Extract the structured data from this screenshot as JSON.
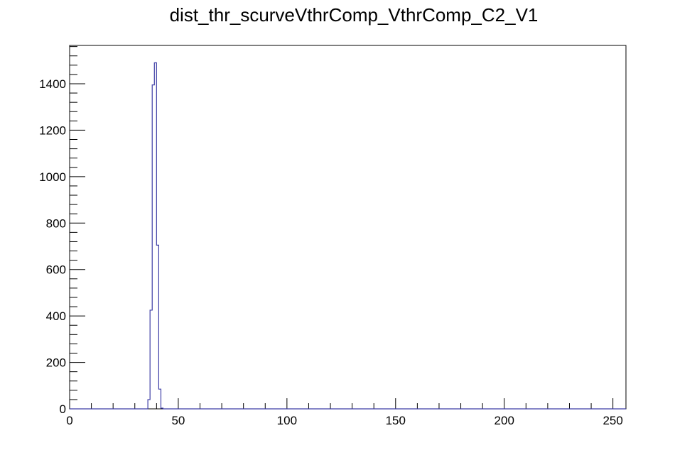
{
  "chart_data": {
    "type": "histogram",
    "title": "dist_thr_scurveVthrComp_VthrComp_C2_V1",
    "xlabel": "",
    "ylabel": "",
    "xlim": [
      0,
      256
    ],
    "ylim": [
      0,
      1565
    ],
    "x_ticks": [
      0,
      50,
      100,
      150,
      200,
      250
    ],
    "x_tick_labels": [
      "0",
      "50",
      "100",
      "150",
      "200",
      "250"
    ],
    "y_ticks": [
      0,
      200,
      400,
      600,
      800,
      1000,
      1200,
      1400
    ],
    "y_tick_labels": [
      "0",
      "200",
      "400",
      "600",
      "800",
      "1000",
      "1200",
      "1400"
    ],
    "bin_width": 1,
    "bins": [
      {
        "x": 36,
        "value": 40
      },
      {
        "x": 37,
        "value": 425
      },
      {
        "x": 38,
        "value": 1395
      },
      {
        "x": 39,
        "value": 1490
      },
      {
        "x": 40,
        "value": 705
      },
      {
        "x": 41,
        "value": 85
      },
      {
        "x": 42,
        "value": 3
      }
    ],
    "line_color": "#3f3fa6",
    "grid": false,
    "legend": "none"
  }
}
